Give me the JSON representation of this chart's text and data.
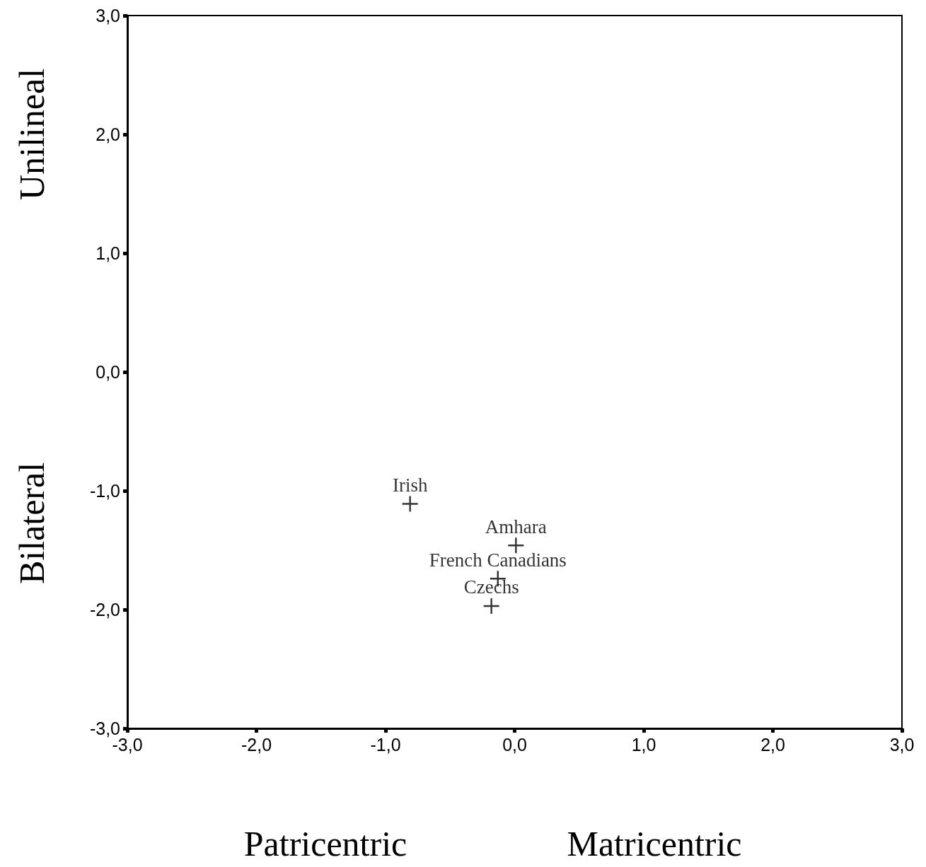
{
  "chart_data": {
    "type": "scatter",
    "series": [
      {
        "name": "Irish",
        "color": "#000000",
        "x": [
          -0.81
        ],
        "values": [
          -1.11
        ]
      },
      {
        "name": "Amhara",
        "color": "#000000",
        "x": [
          0.01
        ],
        "values": [
          -1.46
        ]
      },
      {
        "name": "French Canadians",
        "color": "#000000",
        "x": [
          -0.13
        ],
        "values": [
          -1.74
        ]
      },
      {
        "name": "Czechs",
        "color": "#000000",
        "x": [
          -0.18
        ],
        "values": [
          -1.97
        ]
      }
    ],
    "xlim": [
      -3,
      3
    ],
    "ylim": [
      -3,
      3
    ],
    "xticks": [
      {
        "value": -3,
        "label": "-3,0"
      },
      {
        "value": -2,
        "label": "-2,0"
      },
      {
        "value": -1,
        "label": "-1,0"
      },
      {
        "value": 0,
        "label": "0,0"
      },
      {
        "value": 1,
        "label": "1,0"
      },
      {
        "value": 2,
        "label": "2,0"
      },
      {
        "value": 3,
        "label": "3,0"
      }
    ],
    "yticks": [
      {
        "value": -3,
        "label": "-3,0"
      },
      {
        "value": -2,
        "label": "-2,0"
      },
      {
        "value": -1,
        "label": "-1,0"
      },
      {
        "value": 0,
        "label": "0,0"
      },
      {
        "value": 1,
        "label": "1,0"
      },
      {
        "value": 2,
        "label": "2,0"
      },
      {
        "value": 3,
        "label": "3,0"
      }
    ],
    "annotations": [
      "Unilineal",
      "Bilateral",
      "Patricentric",
      "Matricentric"
    ],
    "marker": "cross",
    "grid": false,
    "legend": false
  }
}
